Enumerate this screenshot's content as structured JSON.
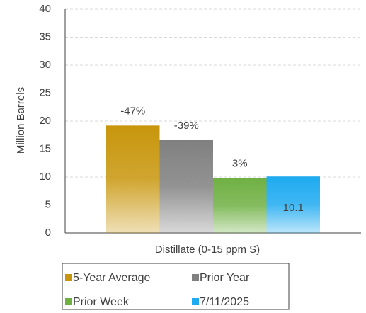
{
  "chart_data": {
    "type": "bar",
    "categories": [
      "Distillate (0-15 ppm S)"
    ],
    "y_label": "Million Barrels",
    "ylim": [
      0,
      40
    ],
    "yticks": [
      0,
      5,
      10,
      15,
      20,
      25,
      30,
      35,
      40
    ],
    "grid": true,
    "series": [
      {
        "name": "5-Year Average",
        "color": "#c8960c",
        "values": [
          19.2
        ],
        "change": "-47%"
      },
      {
        "name": "Prior Year",
        "color": "#808080",
        "values": [
          16.6
        ],
        "change": "-39%"
      },
      {
        "name": "Prior Week",
        "color": "#6fb043",
        "values": [
          9.8
        ],
        "change": "3%"
      },
      {
        "name": "7/11/2025",
        "color": "#1eaaf0",
        "values": [
          10.1
        ]
      }
    ]
  }
}
